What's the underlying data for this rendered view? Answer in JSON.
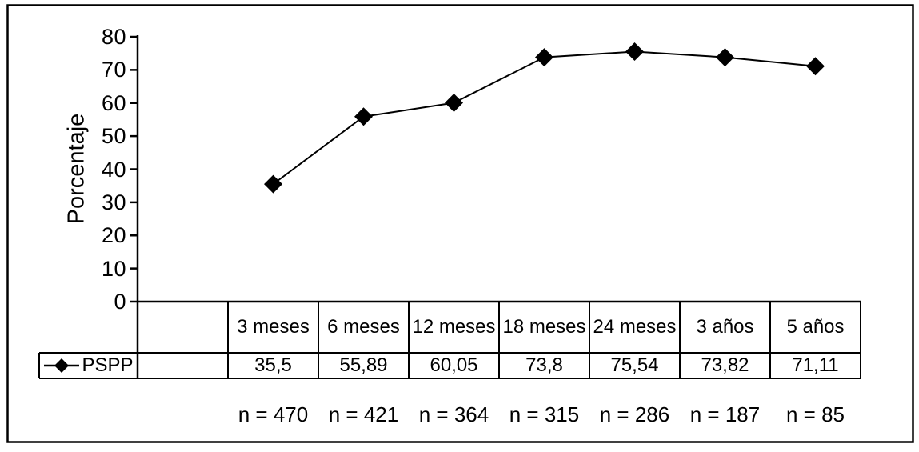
{
  "chart_data": {
    "type": "line",
    "ylabel": "Porcentaje",
    "ylim": [
      0,
      80
    ],
    "yticks": [
      0,
      10,
      20,
      30,
      40,
      50,
      60,
      70,
      80
    ],
    "categories": [
      "3 meses",
      "6 meses",
      "12 meses",
      "18 meses",
      "24 meses",
      "3 años",
      "5 años"
    ],
    "series": [
      {
        "name": "PSPP",
        "values": [
          35.5,
          55.89,
          60.05,
          73.8,
          75.54,
          73.82,
          71.11
        ],
        "value_labels": [
          "35,5",
          "55,89",
          "60,05",
          "73,8",
          "75,54",
          "73,82",
          "71,11"
        ],
        "marker": "diamond-marker-icon"
      }
    ],
    "sample_sizes": [
      "n = 470",
      "n = 421",
      "n = 364",
      "n = 315",
      "n = 286",
      "n = 187",
      "n = 85"
    ],
    "legend_position": "table-left",
    "grid": false,
    "colors": {
      "line": "#000000",
      "marker": "#000000",
      "axis": "#000000",
      "table_border": "#000000",
      "frame_border": "#000000",
      "background": "#ffffff"
    }
  }
}
